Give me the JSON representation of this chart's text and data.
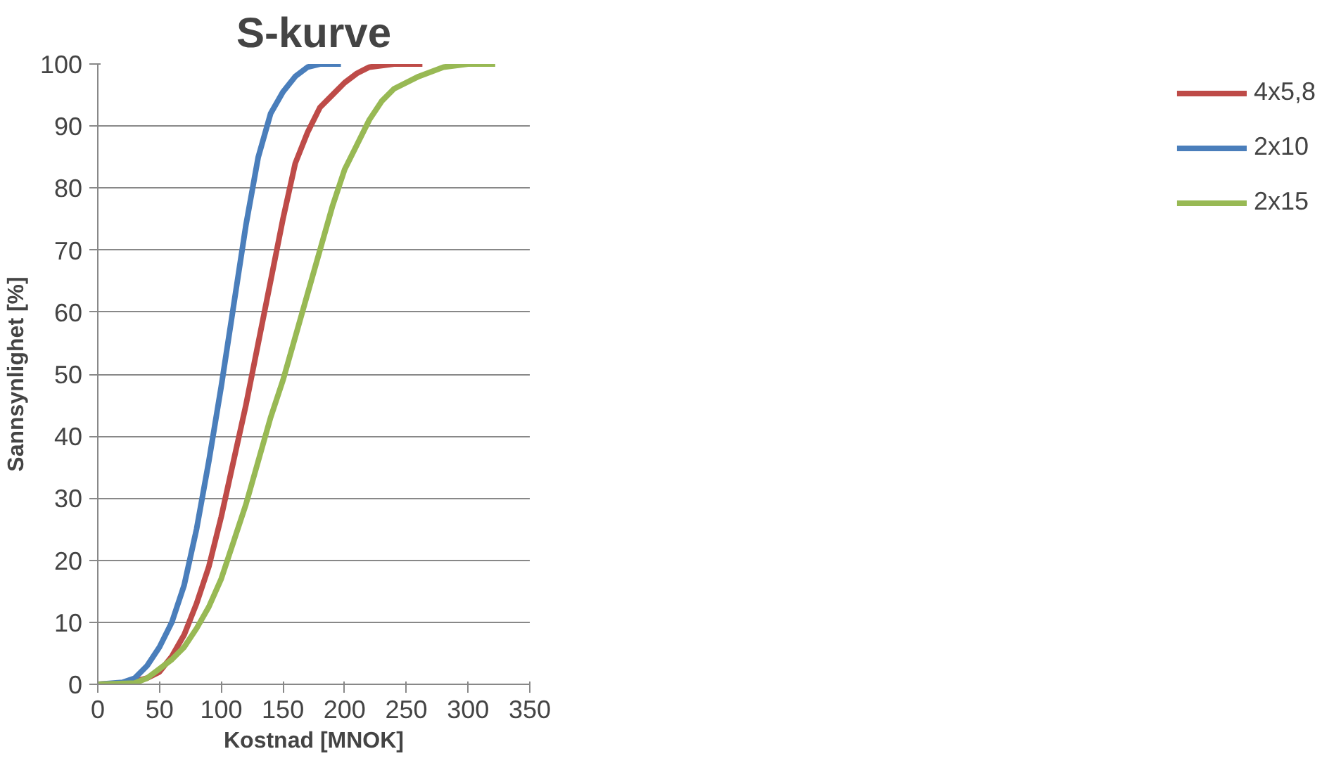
{
  "chart_data": {
    "type": "line",
    "title": "S-kurve",
    "xlabel": "Kostnad [MNOK]",
    "ylabel": "Sannsynlighet [%]",
    "xlim": [
      0,
      350
    ],
    "xticks": [
      0,
      50,
      100,
      150,
      200,
      250,
      300,
      350
    ],
    "ylim": [
      0,
      100
    ],
    "yticks": [
      0,
      10,
      20,
      30,
      40,
      50,
      60,
      70,
      80,
      90,
      100
    ],
    "grid": "y",
    "legend": "right",
    "marker": "none",
    "line_style": "solid",
    "series": [
      {
        "name": "4x5,8",
        "color": "#be4b48",
        "x": [
          0,
          25,
          40,
          50,
          60,
          70,
          80,
          90,
          100,
          110,
          120,
          130,
          140,
          150,
          160,
          170,
          180,
          190,
          200,
          210,
          220,
          240,
          263
        ],
        "values": [
          0,
          0.2,
          1,
          2,
          4.5,
          8,
          13,
          19,
          27,
          36,
          45,
          55,
          65,
          75,
          84,
          89,
          93,
          95,
          97,
          98.5,
          99.5,
          100,
          100
        ]
      },
      {
        "name": "2x10",
        "color": "#4a7ebb",
        "x": [
          0,
          20,
          30,
          40,
          50,
          60,
          70,
          80,
          90,
          100,
          110,
          120,
          130,
          140,
          150,
          160,
          170,
          180,
          197
        ],
        "values": [
          0,
          0.3,
          1,
          3,
          6,
          10,
          16,
          25,
          36,
          48,
          61,
          74,
          85,
          92,
          95.5,
          98,
          99.5,
          100,
          100
        ]
      },
      {
        "name": "2x15",
        "color": "#98b954",
        "x": [
          0,
          30,
          40,
          50,
          60,
          70,
          80,
          90,
          100,
          110,
          120,
          130,
          140,
          150,
          160,
          170,
          180,
          190,
          200,
          210,
          220,
          230,
          240,
          260,
          280,
          300,
          322
        ],
        "values": [
          0,
          0.2,
          1,
          2.5,
          4,
          6,
          9,
          12.5,
          17,
          23,
          29,
          36,
          43,
          49,
          56,
          63,
          70,
          77,
          83,
          87,
          91,
          94,
          96,
          98,
          99.5,
          100,
          100
        ]
      }
    ]
  }
}
